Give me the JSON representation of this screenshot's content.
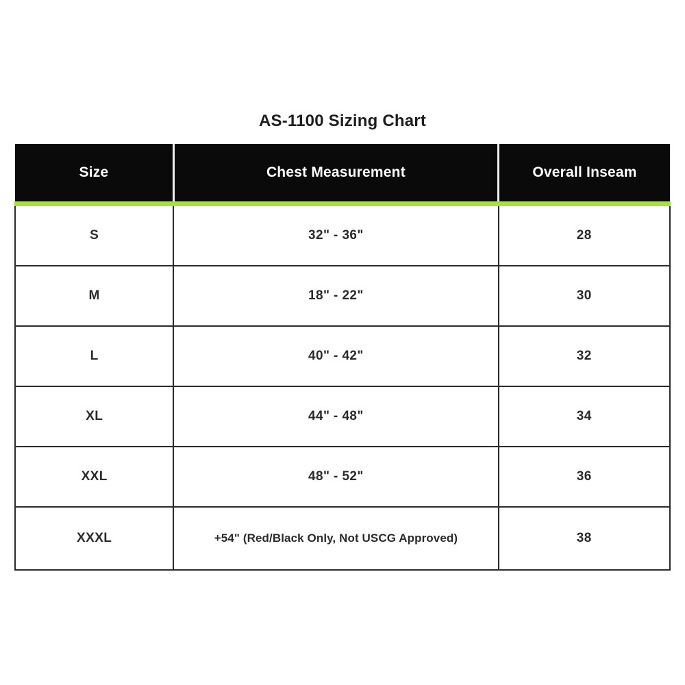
{
  "page": {
    "title": "AS-1100 Sizing Chart"
  },
  "chart_data": {
    "type": "table",
    "title": "AS-1100 Sizing Chart",
    "columns": [
      "Size",
      "Chest Measurement",
      "Overall Inseam"
    ],
    "rows": [
      [
        "S",
        "32\" - 36\"",
        "28"
      ],
      [
        "M",
        "18\" - 22\"",
        "30"
      ],
      [
        "L",
        "40\" - 42\"",
        "32"
      ],
      [
        "XL",
        "44\" - 48\"",
        "34"
      ],
      [
        "XXL",
        "48\" - 52\"",
        "36"
      ],
      [
        "XXXL",
        "+54\" (Red/Black Only, Not USCG Approved)",
        "38"
      ]
    ],
    "layout": {
      "legend": "none",
      "grid": "solid-cell-borders",
      "header_bg": "#0a0a0a",
      "header_text_color": "#ffffff",
      "accent_stripe_color": "#a9e13b",
      "body_border_color": "#2a2a2a",
      "body_text_color": "#2b2b2b",
      "body_bg": "#ffffff",
      "column_widths_pct": [
        24.2,
        49.6,
        26.2
      ]
    }
  }
}
